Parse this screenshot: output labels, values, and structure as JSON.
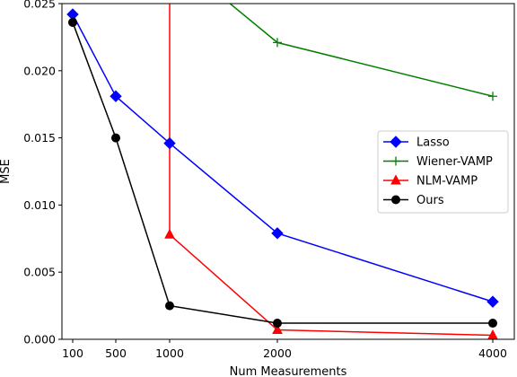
{
  "chart_data": {
    "type": "line",
    "xlabel": "Num Measurements",
    "ylabel": "MSE",
    "xlim": [
      0,
      4200
    ],
    "ylim": [
      0,
      0.025
    ],
    "xticks": [
      100,
      500,
      1000,
      2000,
      4000
    ],
    "xtick_labels": [
      "100",
      "500",
      "1000",
      "2000",
      "4000"
    ],
    "yticks": [
      0,
      0.005,
      0.01,
      0.015,
      0.02,
      0.025
    ],
    "ytick_labels": [
      "0.000",
      "0.005",
      "0.010",
      "0.015",
      "0.020",
      "0.025"
    ],
    "grid": false,
    "legend_position": "center-right",
    "series": [
      {
        "name": "Lasso",
        "color": "#0000ff",
        "marker": "diamond",
        "x": [
          100,
          500,
          1000,
          2000,
          4000
        ],
        "y": [
          0.0242,
          0.0181,
          0.0146,
          0.0079,
          0.0028
        ]
      },
      {
        "name": "Wiener-VAMP",
        "color": "#008000",
        "marker": "plus",
        "x": [
          1500,
          2000,
          4000
        ],
        "y": [
          0.0254,
          0.0221,
          0.0181
        ]
      },
      {
        "name": "NLM-VAMP",
        "color": "#ff0000",
        "marker": "triangle",
        "x": [
          1000,
          1000,
          2000,
          4000
        ],
        "y": [
          0.0255,
          0.0078,
          0.0007,
          0.0003
        ]
      },
      {
        "name": "Ours",
        "color": "#000000",
        "marker": "circle",
        "x": [
          100,
          500,
          1000,
          2000,
          4000
        ],
        "y": [
          0.0236,
          0.015,
          0.0025,
          0.0012,
          0.0012
        ]
      }
    ]
  }
}
